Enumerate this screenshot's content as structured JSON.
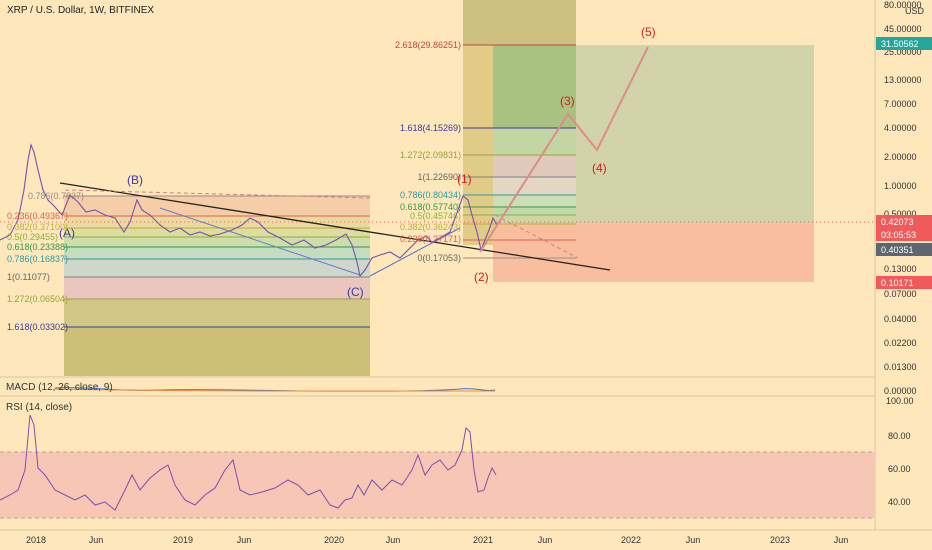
{
  "header": {
    "title": "XRP / U.S. Dollar, 1W, BITFINEX",
    "currency": "USD"
  },
  "colors": {
    "bg": "#fee7bb",
    "price": "#7b4fb0",
    "wave_red": "#e08080",
    "wave_blue": "#3a3aa8",
    "fib_purple": "#6a5acd"
  },
  "indicators": {
    "macd_label": "MACD (12, 26, close, 9)",
    "rsi_label": "RSI (14, close)"
  },
  "price_axis": {
    "ticks": [
      "80.00000",
      "45.00000",
      "25.00000",
      "13.00000",
      "7.00000",
      "4.00000",
      "2.00000",
      "1.00000",
      "0.50000",
      "0.13000",
      "0.07000",
      "0.04000",
      "0.02200",
      "0.01300",
      "0.00000"
    ]
  },
  "price_badges": [
    {
      "label": "31.50562",
      "color": "#26a69a"
    },
    {
      "label": "0.42073",
      "color": "#f05a5a"
    },
    {
      "label": "03:05:53",
      "color": "#f05a5a"
    },
    {
      "label": "0.40351",
      "color": "#5d6671"
    },
    {
      "label": "0.10171",
      "color": "#f05a5a"
    }
  ],
  "rsi_axis": {
    "ticks": [
      "100.00",
      "80.00",
      "60.00",
      "40.00"
    ]
  },
  "time_axis": {
    "ticks": [
      "2018",
      "Jun",
      "2019",
      "Jun",
      "2020",
      "Jun",
      "2021",
      "Jun",
      "2022",
      "Jun",
      "2023",
      "Jun"
    ]
  },
  "chart_data": {
    "type": "line",
    "series": [
      {
        "values": []
      }
    ],
    "wave_labels": [
      "(A)",
      "(B)",
      "(C)",
      "(1)",
      "(2)",
      "(3)",
      "(4)",
      "(5)"
    ],
    "fib_left": [
      "0.786(0.7837)",
      "0.236(0.49367)",
      "0.382(0.37100)",
      "0.5(0.29455)",
      "0.618(0.23388)",
      "0.786(0.16837)",
      "1(0.11077)",
      "1.272(0.06504)",
      "1.618(0.03302)"
    ],
    "fib_right": [
      "2.618(29.86251)",
      "1.618(4.15269)",
      "1.272(2.09831)",
      "1(1.22690)",
      "0.786(0.80434)",
      "0.618(0.57740)",
      "0.5(0.45746)",
      "0.382(0.36243)",
      "0.236(0.27171)",
      "0(0.17053)"
    ],
    "rsi": {
      "ylim": [
        20,
        100
      ],
      "band": [
        30,
        70
      ]
    }
  }
}
